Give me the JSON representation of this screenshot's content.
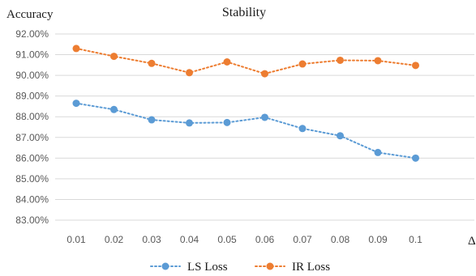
{
  "chart_data": {
    "type": "line",
    "title": "Stability",
    "ylabel": "Accuracy",
    "xlabel": "Δ",
    "categories": [
      "0.01",
      "0.02",
      "0.03",
      "0.04",
      "0.05",
      "0.06",
      "0.07",
      "0.08",
      "0.09",
      "0.1"
    ],
    "y_ticks": [
      "83.00%",
      "84.00%",
      "85.00%",
      "86.00%",
      "87.00%",
      "88.00%",
      "89.00%",
      "90.00%",
      "91.00%",
      "92.00%"
    ],
    "ylim": [
      83,
      92
    ],
    "grid": true,
    "legend_position": "bottom",
    "series": [
      {
        "name": "LS Loss",
        "color": "#5b9bd5",
        "values": [
          88.65,
          88.35,
          87.85,
          87.7,
          87.72,
          87.97,
          87.43,
          87.08,
          86.27,
          86.0
        ]
      },
      {
        "name": "IR Loss",
        "color": "#ed7d31",
        "values": [
          91.3,
          90.92,
          90.58,
          90.13,
          90.65,
          90.08,
          90.55,
          90.73,
          90.71,
          90.48
        ]
      }
    ]
  }
}
